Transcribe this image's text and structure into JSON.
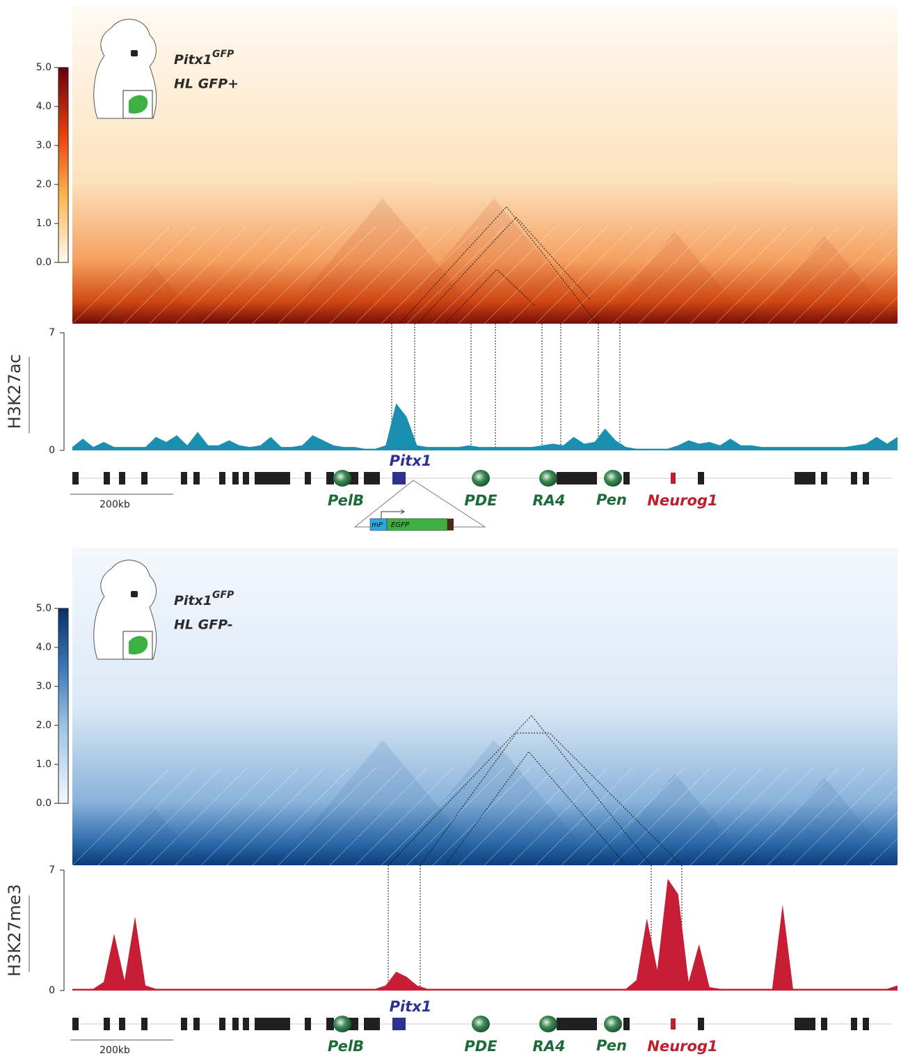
{
  "chart_data": [
    {
      "type": "heatmap",
      "colormap": "orange",
      "clim": [
        0,
        5
      ],
      "cticks": [
        {
          "value": 0,
          "label": "0.0"
        },
        {
          "value": 1,
          "label": "1.0"
        },
        {
          "value": 2,
          "label": "2.0"
        },
        {
          "value": 3,
          "label": "3.0"
        },
        {
          "value": 4,
          "label": "4.0"
        },
        {
          "value": 5,
          "label": "5.0"
        }
      ],
      "label": "Pitx1",
      "label_sup": "GFP",
      "condition": "HL GFP+"
    },
    {
      "type": "area",
      "title": "H3K27ac",
      "color": "#1b8fb0",
      "ylim": [
        0,
        7
      ],
      "yticks": [
        0,
        7
      ],
      "values": [
        0.2,
        0.7,
        0.2,
        0.5,
        0.2,
        0.2,
        0.2,
        0.2,
        0.8,
        0.5,
        0.9,
        0.3,
        1.1,
        0.3,
        0.3,
        0.6,
        0.3,
        0.2,
        0.3,
        0.8,
        0.2,
        0.2,
        0.3,
        0.9,
        0.6,
        0.3,
        0.2,
        0.2,
        0.1,
        0.1,
        0.3,
        2.8,
        2.0,
        0.3,
        0.2,
        0.2,
        0.2,
        0.2,
        0.3,
        0.2,
        0.2,
        0.2,
        0.2,
        0.2,
        0.2,
        0.3,
        0.4,
        0.3,
        0.8,
        0.4,
        0.5,
        1.3,
        0.6,
        0.2,
        0.1,
        0.1,
        0.1,
        0.1,
        0.3,
        0.6,
        0.4,
        0.5,
        0.3,
        0.7,
        0.3,
        0.3,
        0.2,
        0.2,
        0.2,
        0.2,
        0.2,
        0.2,
        0.2,
        0.2,
        0.2,
        0.3,
        0.4,
        0.8,
        0.4,
        0.8
      ]
    },
    {
      "type": "heatmap",
      "colormap": "blue",
      "clim": [
        0,
        5
      ],
      "cticks": [
        {
          "value": 0,
          "label": "0.0"
        },
        {
          "value": 1,
          "label": "1.0"
        },
        {
          "value": 2,
          "label": "2.0"
        },
        {
          "value": 3,
          "label": "3.0"
        },
        {
          "value": 4,
          "label": "4.0"
        },
        {
          "value": 5,
          "label": "5.0"
        }
      ],
      "label": "Pitx1",
      "label_sup": "GFP",
      "condition": "HL GFP-"
    },
    {
      "type": "area",
      "title": "H3K27me3",
      "color": "#c81e35",
      "ylim": [
        0,
        7
      ],
      "yticks": [
        0,
        7
      ],
      "values": [
        0.1,
        0.1,
        0.1,
        0.5,
        3.3,
        0.6,
        4.3,
        0.3,
        0.1,
        0.1,
        0.1,
        0.1,
        0.1,
        0.1,
        0.1,
        0.1,
        0.1,
        0.1,
        0.1,
        0.1,
        0.1,
        0.1,
        0.1,
        0.1,
        0.1,
        0.1,
        0.1,
        0.1,
        0.1,
        0.1,
        0.3,
        1.1,
        0.8,
        0.3,
        0.1,
        0.1,
        0.1,
        0.1,
        0.1,
        0.1,
        0.1,
        0.1,
        0.1,
        0.1,
        0.1,
        0.1,
        0.1,
        0.1,
        0.1,
        0.1,
        0.1,
        0.1,
        0.1,
        0.1,
        0.6,
        4.2,
        1.2,
        6.5,
        5.6,
        0.5,
        2.7,
        0.2,
        0.1,
        0.1,
        0.1,
        0.1,
        0.1,
        0.1,
        5.0,
        0.1,
        0.1,
        0.1,
        0.1,
        0.1,
        0.1,
        0.1,
        0.1,
        0.1,
        0.1,
        0.3
      ]
    }
  ],
  "gene_tracks": [
    {
      "genes": [
        "PelB",
        "Pitx1",
        "PDE",
        "RA4",
        "Pen",
        "Neurog1"
      ],
      "scale": "200kb",
      "construct": [
        "mP",
        "EGFP"
      ]
    },
    {
      "genes": [
        "PelB",
        "Pitx1",
        "PDE",
        "RA4",
        "Pen",
        "Neurog1"
      ],
      "scale": "200kb"
    }
  ]
}
